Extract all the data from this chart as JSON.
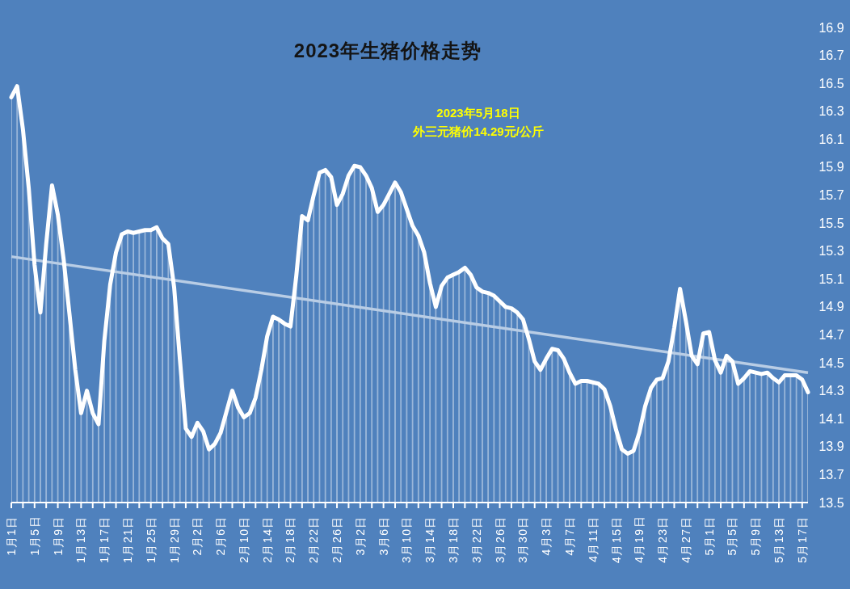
{
  "chart_data": {
    "type": "area",
    "title": "2023年生猪价格走势",
    "annotations": [
      "2023年5月18日",
      "外三元猪价14.29元/公斤"
    ],
    "x": [
      "--01-01",
      "--01-02",
      "--01-03",
      "--01-04",
      "--01-05",
      "--01-06",
      "--01-07",
      "--01-08",
      "--01-09",
      "--01-10",
      "--01-11",
      "--01-12",
      "--01-13",
      "--01-14",
      "--01-15",
      "--01-16",
      "--01-17",
      "--01-18",
      "--01-19",
      "--01-20",
      "--01-21",
      "--01-22",
      "--01-23",
      "--01-24",
      "--01-25",
      "--01-26",
      "--01-27",
      "--01-28",
      "--01-29",
      "--01-30",
      "--01-31",
      "--02-01",
      "--02-02",
      "--02-03",
      "--02-04",
      "--02-05",
      "--02-06",
      "--02-07",
      "--02-08",
      "--02-09",
      "--02-10",
      "--02-11",
      "--02-12",
      "--02-13",
      "--02-14",
      "--02-15",
      "--02-16",
      "--02-17",
      "--02-18",
      "--02-19",
      "--02-20",
      "--02-21",
      "--02-22",
      "--02-23",
      "--02-24",
      "--02-25",
      "--02-26",
      "--02-27",
      "--02-28",
      "--03-01",
      "--03-02",
      "--03-03",
      "--03-04",
      "--03-05",
      "--03-06",
      "--03-07",
      "--03-08",
      "--03-09",
      "--03-10",
      "--03-11",
      "--03-12",
      "--03-13",
      "--03-14",
      "--03-15",
      "--03-16",
      "--03-17",
      "--03-18",
      "--03-19",
      "--03-20",
      "--03-21",
      "--03-22",
      "--03-23",
      "--03-24",
      "--03-25",
      "--03-26",
      "--03-27",
      "--03-28",
      "--03-29",
      "--03-30",
      "--03-31",
      "--04-01",
      "--04-02",
      "--04-03",
      "--04-04",
      "--04-05",
      "--04-06",
      "--04-07",
      "--04-08",
      "--04-09",
      "--04-10",
      "--04-11",
      "--04-12",
      "--04-13",
      "--04-14",
      "--04-15",
      "--04-16",
      "--04-17",
      "--04-18",
      "--04-19",
      "--04-20",
      "--04-21",
      "--04-22",
      "--04-23",
      "--04-24",
      "--04-25",
      "--04-26",
      "--04-27",
      "--04-28",
      "--04-29",
      "--04-30",
      "--05-01",
      "--05-02",
      "--05-03",
      "--05-04",
      "--05-05",
      "--05-06",
      "--05-07",
      "--05-08",
      "--05-09",
      "--05-10",
      "--05-11",
      "--05-12",
      "--05-13",
      "--05-14",
      "--05-15",
      "--05-16",
      "--05-17",
      "--05-18"
    ],
    "xlim": [
      "--01-01",
      "--05-18"
    ],
    "xticks": [
      {
        "value": "--01-01",
        "label": "1月1日"
      },
      {
        "value": "--01-03",
        "label": null
      },
      {
        "value": "--01-05",
        "label": "1月5日"
      },
      {
        "value": "--01-07",
        "label": null
      },
      {
        "value": "--01-09",
        "label": "1月9日"
      },
      {
        "value": "--01-11",
        "label": null
      },
      {
        "value": "--01-13",
        "label": "1月13日"
      },
      {
        "value": "--01-15",
        "label": null
      },
      {
        "value": "--01-17",
        "label": "1月17日"
      },
      {
        "value": "--01-19",
        "label": null
      },
      {
        "value": "--01-21",
        "label": "1月21日"
      },
      {
        "value": "--01-23",
        "label": null
      },
      {
        "value": "--01-25",
        "label": "1月25日"
      },
      {
        "value": "--01-27",
        "label": null
      },
      {
        "value": "--01-29",
        "label": "1月29日"
      },
      {
        "value": "--01-31",
        "label": null
      },
      {
        "value": "--02-02",
        "label": "2月2日"
      },
      {
        "value": "--02-04",
        "label": null
      },
      {
        "value": "--02-06",
        "label": "2月6日"
      },
      {
        "value": "--02-08",
        "label": null
      },
      {
        "value": "--02-10",
        "label": "2月10日"
      },
      {
        "value": "--02-12",
        "label": null
      },
      {
        "value": "--02-14",
        "label": "2月14日"
      },
      {
        "value": "--02-16",
        "label": null
      },
      {
        "value": "--02-18",
        "label": "2月18日"
      },
      {
        "value": "--02-20",
        "label": null
      },
      {
        "value": "--02-22",
        "label": "2月22日"
      },
      {
        "value": "--02-24",
        "label": null
      },
      {
        "value": "--02-26",
        "label": "2月26日"
      },
      {
        "value": "--02-28",
        "label": null
      },
      {
        "value": "--03-02",
        "label": "3月2日"
      },
      {
        "value": "--03-04",
        "label": null
      },
      {
        "value": "--03-06",
        "label": "3月6日"
      },
      {
        "value": "--03-08",
        "label": null
      },
      {
        "value": "--03-10",
        "label": "3月10日"
      },
      {
        "value": "--03-12",
        "label": null
      },
      {
        "value": "--03-14",
        "label": "3月14日"
      },
      {
        "value": "--03-16",
        "label": null
      },
      {
        "value": "--03-18",
        "label": "3月18日"
      },
      {
        "value": "--03-20",
        "label": null
      },
      {
        "value": "--03-22",
        "label": "3月22日"
      },
      {
        "value": "--03-24",
        "label": null
      },
      {
        "value": "--03-26",
        "label": "3月26日"
      },
      {
        "value": "--03-28",
        "label": null
      },
      {
        "value": "--03-30",
        "label": "3月30日"
      },
      {
        "value": "--04-01",
        "label": null
      },
      {
        "value": "--04-03",
        "label": "4月3日"
      },
      {
        "value": "--04-05",
        "label": null
      },
      {
        "value": "--04-07",
        "label": "4月7日"
      },
      {
        "value": "--04-09",
        "label": null
      },
      {
        "value": "--04-11",
        "label": "4月11日"
      },
      {
        "value": "--04-13",
        "label": null
      },
      {
        "value": "--04-15",
        "label": "4月15日"
      },
      {
        "value": "--04-17",
        "label": null
      },
      {
        "value": "--04-19",
        "label": "4月19日"
      },
      {
        "value": "--04-21",
        "label": null
      },
      {
        "value": "--04-23",
        "label": "4月23日"
      },
      {
        "value": "--04-25",
        "label": null
      },
      {
        "value": "--04-27",
        "label": "4月27日"
      },
      {
        "value": "--04-29",
        "label": null
      },
      {
        "value": "--05-01",
        "label": "5月1日"
      },
      {
        "value": "--05-03",
        "label": null
      },
      {
        "value": "--05-05",
        "label": "5月5日"
      },
      {
        "value": "--05-07",
        "label": null
      },
      {
        "value": "--05-09",
        "label": "5月9日"
      },
      {
        "value": "--05-11",
        "label": null
      },
      {
        "value": "--05-13",
        "label": "5月13日"
      },
      {
        "value": "--05-15",
        "label": null
      },
      {
        "value": "--05-17",
        "label": "5月17日"
      }
    ],
    "ylim": [
      13.5,
      16.9
    ],
    "yticks": [
      13.5,
      13.7,
      13.9,
      14.1,
      14.3,
      14.5,
      14.7,
      14.9,
      15.1,
      15.3,
      15.5,
      15.7,
      15.9,
      16.1,
      16.3,
      16.5,
      16.7,
      16.9
    ],
    "series": [
      {
        "color": "#ffffff",
        "values": [
          16.4,
          16.48,
          16.17,
          15.75,
          15.2,
          14.86,
          15.35,
          15.77,
          15.56,
          15.24,
          14.85,
          14.45,
          14.14,
          14.3,
          14.14,
          14.06,
          14.66,
          15.06,
          15.29,
          15.42,
          15.44,
          15.43,
          15.44,
          15.45,
          15.45,
          15.47,
          15.39,
          15.35,
          15.04,
          14.52,
          14.03,
          13.97,
          14.07,
          14.01,
          13.88,
          13.92,
          14.0,
          14.15,
          14.3,
          14.18,
          14.11,
          14.14,
          14.25,
          14.45,
          14.69,
          14.83,
          14.81,
          14.78,
          14.76,
          15.12,
          15.55,
          15.52,
          15.7,
          15.86,
          15.88,
          15.83,
          15.63,
          15.71,
          15.84,
          15.91,
          15.9,
          15.84,
          15.75,
          15.58,
          15.63,
          15.71,
          15.79,
          15.72,
          15.6,
          15.48,
          15.41,
          15.29,
          15.07,
          14.9,
          15.05,
          15.11,
          15.13,
          15.15,
          15.18,
          15.13,
          15.04,
          15.01,
          15.0,
          14.98,
          14.94,
          14.9,
          14.89,
          14.86,
          14.81,
          14.67,
          14.51,
          14.45,
          14.53,
          14.6,
          14.59,
          14.53,
          14.43,
          14.35,
          14.37,
          14.37,
          14.36,
          14.35,
          14.31,
          14.19,
          14.02,
          13.88,
          13.85,
          13.87,
          14.0,
          14.19,
          14.32,
          14.38,
          14.39,
          14.51,
          14.75,
          15.03,
          14.8,
          14.55,
          14.49,
          14.71,
          14.72,
          14.52,
          14.43,
          14.55,
          14.51,
          14.35,
          14.39,
          14.44,
          14.43,
          14.42,
          14.43,
          14.39,
          14.36,
          14.41,
          14.41,
          14.41,
          14.38,
          14.29
        ]
      },
      {
        "type": "line",
        "color": "#b9cde5",
        "x": [
          "--01-01",
          "--05-18"
        ],
        "values": [
          15.26,
          14.43
        ]
      }
    ]
  }
}
